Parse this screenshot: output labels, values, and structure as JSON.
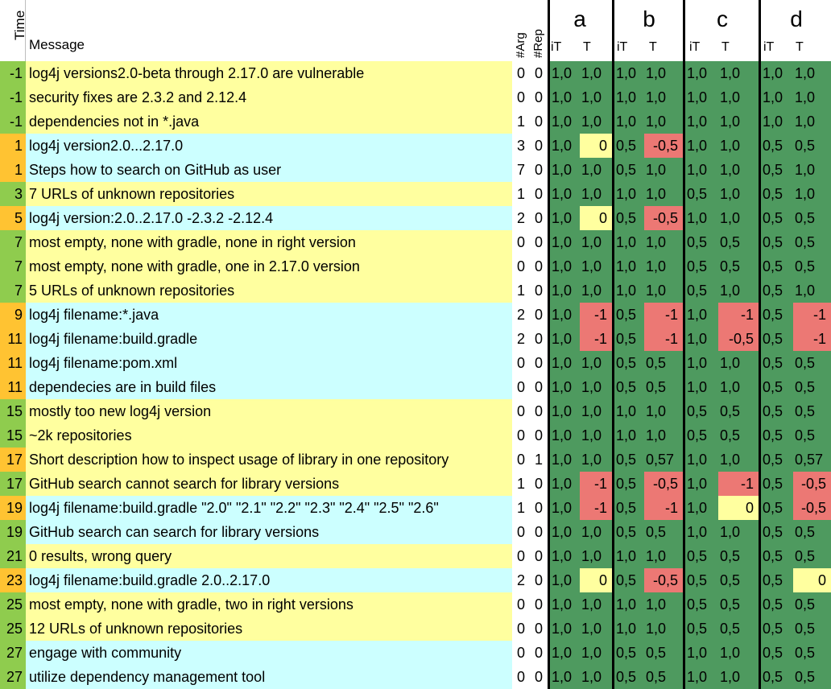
{
  "header": {
    "time": "Time",
    "message": "Message",
    "arg": "#Arg",
    "rep": "#Rep",
    "groups": [
      "a",
      "b",
      "c",
      "d"
    ],
    "sub_it": "iT",
    "sub_t": "T"
  },
  "colors": {
    "yellow_row": "#ffff9f",
    "cyan_row": "#ccffff",
    "time_green": "#8fcc4e",
    "time_orange": "#ffc332",
    "cell_green": "#4e9a5f",
    "cell_red": "#ec7874",
    "cell_yellow": "#ffff9f"
  },
  "rows": [
    {
      "time": "-1",
      "message": "log4j versions2.0-beta through 2.17.0 are vulnerable",
      "arg": "0",
      "rep": "0",
      "vals": [
        "1,0",
        "1,0",
        "1,0",
        "1,0",
        "1,0",
        "1,0",
        "1,0",
        "1,0"
      ],
      "styles": [
        "g",
        "g",
        "g",
        "g",
        "g",
        "g",
        "g",
        "g"
      ],
      "row_color": "yellow",
      "time_color": "green"
    },
    {
      "time": "-1",
      "message": "security fixes are 2.3.2 and 2.12.4",
      "arg": "0",
      "rep": "0",
      "vals": [
        "1,0",
        "1,0",
        "1,0",
        "1,0",
        "1,0",
        "1,0",
        "1,0",
        "1,0"
      ],
      "styles": [
        "g",
        "g",
        "g",
        "g",
        "g",
        "g",
        "g",
        "g"
      ],
      "row_color": "yellow",
      "time_color": "green"
    },
    {
      "time": "-1",
      "message": "dependencies not in *.java",
      "arg": "1",
      "rep": "0",
      "vals": [
        "1,0",
        "1,0",
        "1,0",
        "1,0",
        "1,0",
        "1,0",
        "1,0",
        "1,0"
      ],
      "styles": [
        "g",
        "g",
        "g",
        "g",
        "g",
        "g",
        "g",
        "g"
      ],
      "row_color": "yellow",
      "time_color": "green"
    },
    {
      "time": "1",
      "message": "log4j version2.0...2.17.0",
      "arg": "3",
      "rep": "0",
      "vals": [
        "1,0",
        "0",
        "0,5",
        "-0,5",
        "1,0",
        "1,0",
        "0,5",
        "0,5"
      ],
      "styles": [
        "g",
        "y",
        "g",
        "r",
        "g",
        "g",
        "g",
        "g"
      ],
      "row_color": "cyan",
      "time_color": "orange"
    },
    {
      "time": "1",
      "message": "Steps how to search  on GitHub as user",
      "arg": "7",
      "rep": "0",
      "vals": [
        "1,0",
        "1,0",
        "0,5",
        "1,0",
        "1,0",
        "1,0",
        "0,5",
        "1,0"
      ],
      "styles": [
        "g",
        "g",
        "g",
        "g",
        "g",
        "g",
        "g",
        "g"
      ],
      "row_color": "cyan",
      "time_color": "orange"
    },
    {
      "time": "3",
      "message": "7 URLs of unknown repositories",
      "arg": "1",
      "rep": "0",
      "vals": [
        "1,0",
        "1,0",
        "1,0",
        "1,0",
        "0,5",
        "1,0",
        "0,5",
        "1,0"
      ],
      "styles": [
        "g",
        "g",
        "g",
        "g",
        "g",
        "g",
        "g",
        "g"
      ],
      "row_color": "yellow",
      "time_color": "green"
    },
    {
      "time": "5",
      "message": "log4j version:2.0..2.17.0 -2.3.2 -2.12.4",
      "arg": "2",
      "rep": "0",
      "vals": [
        "1,0",
        "0",
        "0,5",
        "-0,5",
        "1,0",
        "1,0",
        "0,5",
        "0,5"
      ],
      "styles": [
        "g",
        "y",
        "g",
        "r",
        "g",
        "g",
        "g",
        "g"
      ],
      "row_color": "cyan",
      "time_color": "orange"
    },
    {
      "time": "7",
      "message": "most empty, none with gradle, none in right version",
      "arg": "0",
      "rep": "0",
      "vals": [
        "1,0",
        "1,0",
        "1,0",
        "1,0",
        "0,5",
        "0,5",
        "0,5",
        "0,5"
      ],
      "styles": [
        "g",
        "g",
        "g",
        "g",
        "g",
        "g",
        "g",
        "g"
      ],
      "row_color": "yellow",
      "time_color": "green"
    },
    {
      "time": "7",
      "message": "most empty, none with gradle, one in 2.17.0 version",
      "arg": "0",
      "rep": "0",
      "vals": [
        "1,0",
        "1,0",
        "1,0",
        "1,0",
        "0,5",
        "0,5",
        "0,5",
        "0,5"
      ],
      "styles": [
        "g",
        "g",
        "g",
        "g",
        "g",
        "g",
        "g",
        "g"
      ],
      "row_color": "yellow",
      "time_color": "green"
    },
    {
      "time": "7",
      "message": "5 URLs of unknown repositories",
      "arg": "1",
      "rep": "0",
      "vals": [
        "1,0",
        "1,0",
        "1,0",
        "1,0",
        "0,5",
        "1,0",
        "0,5",
        "1,0"
      ],
      "styles": [
        "g",
        "g",
        "g",
        "g",
        "g",
        "g",
        "g",
        "g"
      ],
      "row_color": "yellow",
      "time_color": "green"
    },
    {
      "time": "9",
      "message": "log4j filename:*.java",
      "arg": "2",
      "rep": "0",
      "vals": [
        "1,0",
        "-1",
        "0,5",
        "-1",
        "1,0",
        "-1",
        "0,5",
        "-1"
      ],
      "styles": [
        "g",
        "r",
        "g",
        "r",
        "g",
        "r",
        "g",
        "r"
      ],
      "row_color": "cyan",
      "time_color": "orange"
    },
    {
      "time": "11",
      "message": "log4j filename:build.gradle",
      "arg": "2",
      "rep": "0",
      "vals": [
        "1,0",
        "-1",
        "0,5",
        "-1",
        "1,0",
        "-0,5",
        "0,5",
        "-1"
      ],
      "styles": [
        "g",
        "r",
        "g",
        "r",
        "g",
        "r",
        "g",
        "r"
      ],
      "row_color": "cyan",
      "time_color": "orange"
    },
    {
      "time": "11",
      "message": "log4j filename:pom.xml",
      "arg": "0",
      "rep": "0",
      "vals": [
        "1,0",
        "1,0",
        "0,5",
        "0,5",
        "1,0",
        "1,0",
        "0,5",
        "0,5"
      ],
      "styles": [
        "g",
        "g",
        "g",
        "g",
        "g",
        "g",
        "g",
        "g"
      ],
      "row_color": "cyan",
      "time_color": "orange"
    },
    {
      "time": "11",
      "message": "dependecies are in build files",
      "arg": "0",
      "rep": "0",
      "vals": [
        "1,0",
        "1,0",
        "0,5",
        "0,5",
        "1,0",
        "1,0",
        "0,5",
        "0,5"
      ],
      "styles": [
        "g",
        "g",
        "g",
        "g",
        "g",
        "g",
        "g",
        "g"
      ],
      "row_color": "cyan",
      "time_color": "orange"
    },
    {
      "time": "15",
      "message": "mostly too new log4j version",
      "arg": "0",
      "rep": "0",
      "vals": [
        "1,0",
        "1,0",
        "1,0",
        "1,0",
        "0,5",
        "0,5",
        "0,5",
        "0,5"
      ],
      "styles": [
        "g",
        "g",
        "g",
        "g",
        "g",
        "g",
        "g",
        "g"
      ],
      "row_color": "yellow",
      "time_color": "green"
    },
    {
      "time": "15",
      "message": "~2k repositories",
      "arg": "0",
      "rep": "0",
      "vals": [
        "1,0",
        "1,0",
        "1,0",
        "1,0",
        "0,5",
        "0,5",
        "0,5",
        "0,5"
      ],
      "styles": [
        "g",
        "g",
        "g",
        "g",
        "g",
        "g",
        "g",
        "g"
      ],
      "row_color": "yellow",
      "time_color": "green"
    },
    {
      "time": "17",
      "message": "Short description how to inspect usage of library in one repository",
      "arg": "0",
      "rep": "1",
      "vals": [
        "1,0",
        "1,0",
        "0,5",
        "0,57",
        "1,0",
        "1,0",
        "0,5",
        "0,57"
      ],
      "styles": [
        "g",
        "g",
        "g",
        "g",
        "g",
        "g",
        "g",
        "g"
      ],
      "row_color": "yellow",
      "time_color": "orange"
    },
    {
      "time": "17",
      "message": "GitHub search cannot search for library versions",
      "arg": "1",
      "rep": "0",
      "vals": [
        "1,0",
        "-1",
        "0,5",
        "-0,5",
        "1,0",
        "-1",
        "0,5",
        "-0,5"
      ],
      "styles": [
        "g",
        "r",
        "g",
        "r",
        "g",
        "r",
        "g",
        "r"
      ],
      "row_color": "yellow",
      "time_color": "green"
    },
    {
      "time": "19",
      "message": "log4j filename:build.gradle \"2.0\" \"2.1\" \"2.2\" \"2.3\" \"2.4\" \"2.5\" \"2.6\"",
      "arg": "1",
      "rep": "0",
      "vals": [
        "1,0",
        "-1",
        "0,5",
        "-1",
        "1,0",
        "0",
        "0,5",
        "-0,5"
      ],
      "styles": [
        "g",
        "r",
        "g",
        "r",
        "g",
        "y",
        "g",
        "r"
      ],
      "row_color": "cyan",
      "time_color": "orange"
    },
    {
      "time": "19",
      "message": "GitHub search can search for library versions",
      "arg": "0",
      "rep": "0",
      "vals": [
        "1,0",
        "1,0",
        "0,5",
        "0,5",
        "1,0",
        "1,0",
        "0,5",
        "0,5"
      ],
      "styles": [
        "g",
        "g",
        "g",
        "g",
        "g",
        "g",
        "g",
        "g"
      ],
      "row_color": "cyan",
      "time_color": "green"
    },
    {
      "time": "21",
      "message": "0 results, wrong query",
      "arg": "0",
      "rep": "0",
      "vals": [
        "1,0",
        "1,0",
        "1,0",
        "1,0",
        "0,5",
        "0,5",
        "0,5",
        "0,5"
      ],
      "styles": [
        "g",
        "g",
        "g",
        "g",
        "g",
        "g",
        "g",
        "g"
      ],
      "row_color": "yellow",
      "time_color": "green"
    },
    {
      "time": "23",
      "message": "log4j filename:build.gradle 2.0..2.17.0",
      "arg": "2",
      "rep": "0",
      "vals": [
        "1,0",
        "0",
        "0,5",
        "-0,5",
        "0,5",
        "0,5",
        "0,5",
        "0"
      ],
      "styles": [
        "g",
        "y",
        "g",
        "r",
        "g",
        "g",
        "g",
        "y"
      ],
      "row_color": "cyan",
      "time_color": "orange"
    },
    {
      "time": "25",
      "message": "most empty, none with gradle, two in right versions",
      "arg": "0",
      "rep": "0",
      "vals": [
        "1,0",
        "1,0",
        "1,0",
        "1,0",
        "0,5",
        "0,5",
        "0,5",
        "0,5"
      ],
      "styles": [
        "g",
        "g",
        "g",
        "g",
        "g",
        "g",
        "g",
        "g"
      ],
      "row_color": "yellow",
      "time_color": "green"
    },
    {
      "time": "25",
      "message": "12 URLs of unknown repositories",
      "arg": "0",
      "rep": "0",
      "vals": [
        "1,0",
        "1,0",
        "1,0",
        "1,0",
        "0,5",
        "0,5",
        "0,5",
        "0,5"
      ],
      "styles": [
        "g",
        "g",
        "g",
        "g",
        "g",
        "g",
        "g",
        "g"
      ],
      "row_color": "yellow",
      "time_color": "green"
    },
    {
      "time": "27",
      "message": "engage with community",
      "arg": "0",
      "rep": "0",
      "vals": [
        "1,0",
        "1,0",
        "0,5",
        "0,5",
        "1,0",
        "1,0",
        "0,5",
        "0,5"
      ],
      "styles": [
        "g",
        "g",
        "g",
        "g",
        "g",
        "g",
        "g",
        "g"
      ],
      "row_color": "cyan",
      "time_color": "green"
    },
    {
      "time": "27",
      "message": "utilize dependency management tool",
      "arg": "0",
      "rep": "0",
      "vals": [
        "1,0",
        "1,0",
        "0,5",
        "0,5",
        "1,0",
        "1,0",
        "0,5",
        "0,5"
      ],
      "styles": [
        "g",
        "g",
        "g",
        "g",
        "g",
        "g",
        "g",
        "g"
      ],
      "row_color": "cyan",
      "time_color": "green"
    }
  ]
}
